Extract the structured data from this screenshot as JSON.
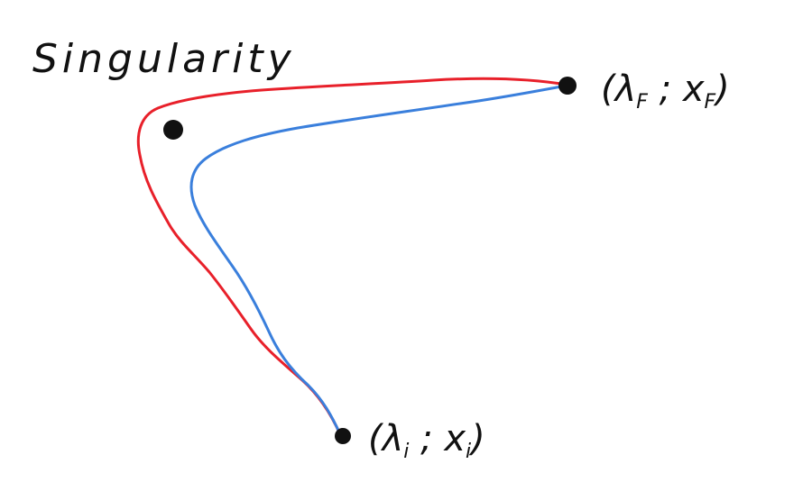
{
  "diagram": {
    "singularity_label": "Singularity",
    "start_point": {
      "lambda_symbol": "λ",
      "lambda_subscript": "i",
      "x_symbol": "x",
      "x_subscript": "i",
      "open": "(",
      "separator": " ; ",
      "close": ")"
    },
    "end_point": {
      "lambda_symbol": "λ",
      "lambda_subscript": "F",
      "x_symbol": "x",
      "x_subscript": "F",
      "open": "(",
      "separator": " ; ",
      "close": ")"
    },
    "paths": {
      "outer_color": "#e8202a",
      "inner_color": "#3a7fdc",
      "ink_color": "#111111"
    }
  }
}
